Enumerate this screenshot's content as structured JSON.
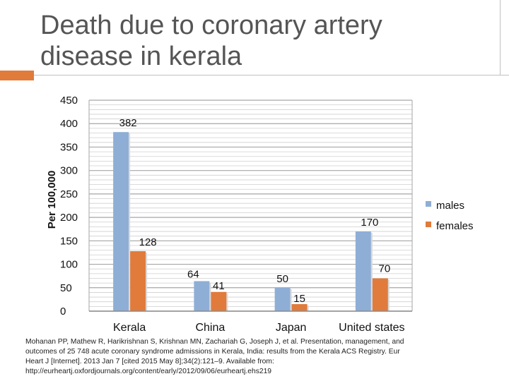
{
  "slide": {
    "title": "Death due to coronary artery\ndisease in kerala",
    "accent_color": "#e07b3c"
  },
  "chart_data": {
    "type": "bar",
    "title": "",
    "ylabel": "Per 100,000",
    "xlabel": "",
    "categories": [
      "Kerala",
      "China",
      "Japan",
      "United states"
    ],
    "series": [
      {
        "name": "males",
        "color": "#8eaed6",
        "values": [
          382,
          64,
          50,
          170
        ]
      },
      {
        "name": "females",
        "color": "#e07b3c",
        "values": [
          128,
          41,
          15,
          70
        ]
      }
    ],
    "ylim": [
      0,
      450
    ],
    "yticks": [
      0,
      50,
      100,
      150,
      200,
      250,
      300,
      350,
      400,
      450
    ],
    "grid": true,
    "legend": "right"
  },
  "footnote": {
    "lines": [
      "Mohanan PP, Mathew R, Harikrishnan S, Krishnan MN, Zachariah G, Joseph J, et al. Presentation, management, and",
      "outcomes of 25 748 acute coronary syndrome admissions in Kerala, India: results from the Kerala ACS Registry. Eur",
      "Heart J [Internet]. 2013 Jan 7 [cited 2015 May 8];34(2):121–9. Available from:",
      "http://eurheartj.oxfordjournals.org/content/early/2012/09/06/eurheartj.ehs219"
    ]
  }
}
